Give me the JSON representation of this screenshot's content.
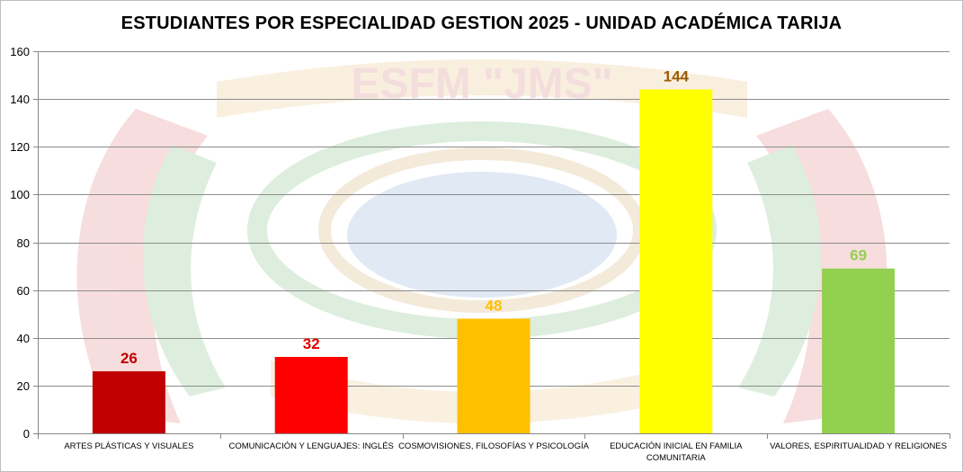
{
  "chart_data": {
    "type": "bar",
    "title": "ESTUDIANTES POR ESPECIALIDAD GESTION 2025 - UNIDAD ACADÉMICA TARIJA",
    "xlabel": "",
    "ylabel": "",
    "ylim": [
      0,
      160
    ],
    "yticks": [
      "0",
      "20",
      "40",
      "60",
      "80",
      "100",
      "120",
      "140",
      "160"
    ],
    "grid": true,
    "legend": "none",
    "categories": [
      [
        "ARTES PLÁSTICAS Y VISUALES"
      ],
      [
        "COMUNICACIÓN Y LENGUAJES:  INGLÉS"
      ],
      [
        "COSMOVISIONES, FILOSOFÍAS Y PSICOLOGÍA"
      ],
      [
        "EDUCACIÓN INICIAL EN FAMILIA",
        "COMUNITARIA"
      ],
      [
        "VALORES, ESPIRITUALIDAD Y RELIGIONES"
      ]
    ],
    "values": [
      26,
      32,
      48,
      144,
      69
    ],
    "data_labels": [
      "26",
      "32",
      "48",
      "144",
      "69"
    ],
    "bar_colors": [
      "#c00000",
      "#ff0000",
      "#ffc000",
      "#ffff00",
      "#92d050"
    ],
    "label_colors": [
      "#c00000",
      "#e00000",
      "#ffc000",
      "#9c5a00",
      "#92d050"
    ],
    "watermark_text": "ESFM \"JMS\""
  }
}
